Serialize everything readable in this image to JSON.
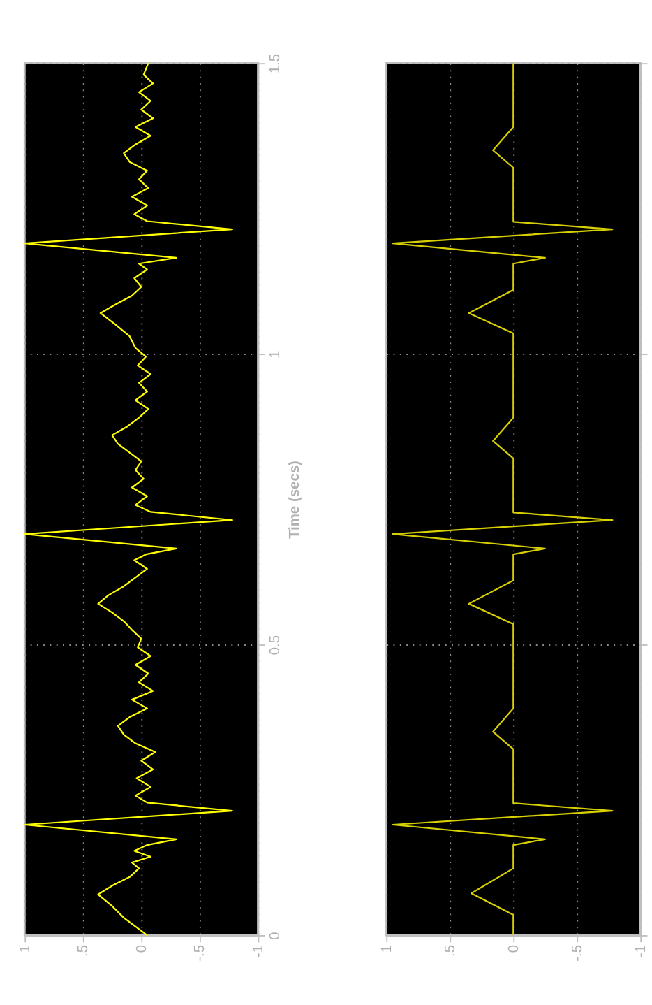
{
  "chart_data": [
    {
      "type": "line",
      "orientation": "horizontal",
      "ylabel": "Time (secs)",
      "ylim": [
        0,
        1.5
      ],
      "yticks": [
        0,
        0.5,
        1,
        1.5
      ],
      "xlim": [
        1,
        -1
      ],
      "xticks": [
        {
          "value": 1,
          "label": "1"
        },
        {
          "value": 0.5,
          "label": ".5"
        },
        0,
        {
          "value": -0.5,
          "label": "-.5"
        },
        {
          "value": -1,
          "label": "-1"
        }
      ],
      "grid": true,
      "legend": false,
      "marker": "none",
      "line_style": "solid",
      "x": [
        0.0,
        0.015,
        0.03,
        0.05,
        0.07,
        0.085,
        0.1,
        0.115,
        0.125,
        0.135,
        0.145,
        0.155,
        0.165,
        0.19,
        0.214,
        0.228,
        0.24,
        0.255,
        0.27,
        0.285,
        0.3,
        0.315,
        0.33,
        0.345,
        0.36,
        0.375,
        0.39,
        0.405,
        0.42,
        0.435,
        0.45,
        0.465,
        0.48,
        0.495,
        0.51,
        0.525,
        0.54,
        0.555,
        0.57,
        0.585,
        0.6,
        0.615,
        0.63,
        0.645,
        0.655,
        0.665,
        0.69,
        0.714,
        0.728,
        0.74,
        0.755,
        0.77,
        0.785,
        0.8,
        0.815,
        0.83,
        0.845,
        0.86,
        0.875,
        0.89,
        0.905,
        0.92,
        0.935,
        0.95,
        0.965,
        0.98,
        0.995,
        1.01,
        1.03,
        1.05,
        1.07,
        1.085,
        1.1,
        1.115,
        1.13,
        1.145,
        1.155,
        1.165,
        1.19,
        1.214,
        1.228,
        1.24,
        1.255,
        1.27,
        1.285,
        1.3,
        1.315,
        1.33,
        1.345,
        1.36,
        1.375,
        1.39,
        1.405,
        1.42,
        1.435,
        1.45,
        1.465,
        1.48,
        1.5
      ],
      "series": [
        {
          "color": "#ffff00",
          "values": [
            -0.05,
            0.05,
            0.15,
            0.25,
            0.37,
            0.25,
            0.1,
            0.02,
            0.08,
            -0.08,
            0.06,
            -0.05,
            -0.3,
            1.0,
            -0.78,
            -0.05,
            0.05,
            -0.08,
            0.04,
            -0.1,
            0.0,
            -0.12,
            0.05,
            0.15,
            0.2,
            0.1,
            -0.05,
            0.08,
            -0.1,
            0.02,
            -0.06,
            0.05,
            -0.08,
            0.03,
            0.0,
            0.08,
            0.15,
            0.25,
            0.37,
            0.28,
            0.15,
            0.05,
            -0.05,
            0.06,
            -0.04,
            -0.3,
            1.0,
            -0.78,
            -0.08,
            0.05,
            -0.05,
            0.08,
            -0.02,
            0.05,
            0.0,
            0.1,
            0.2,
            0.25,
            0.12,
            0.02,
            -0.06,
            0.05,
            -0.05,
            0.02,
            -0.08,
            0.03,
            -0.04,
            0.05,
            0.1,
            0.22,
            0.35,
            0.22,
            0.08,
            0.0,
            0.06,
            -0.05,
            0.02,
            -0.3,
            1.0,
            -0.78,
            -0.05,
            0.06,
            -0.05,
            0.08,
            -0.06,
            0.02,
            -0.05,
            0.1,
            0.15,
            0.05,
            -0.08,
            0.05,
            -0.1,
            0.0,
            -0.08,
            0.02,
            -0.1,
            -0.02,
            -0.06
          ]
        }
      ]
    },
    {
      "type": "line",
      "orientation": "horizontal",
      "ylim": [
        0,
        1.5
      ],
      "yticks": [
        0,
        0.5,
        1,
        1.5
      ],
      "xlim": [
        1,
        -1
      ],
      "xticks": [
        {
          "value": 1,
          "label": "1"
        },
        {
          "value": 0.5,
          "label": ".5"
        },
        0,
        {
          "value": -0.5,
          "label": "-.5"
        },
        {
          "value": -1,
          "label": "-1"
        }
      ],
      "grid": true,
      "legend": false,
      "marker": "none",
      "line_style": "solid",
      "tick_labels": "x",
      "x": [
        0,
        0.035,
        0.072,
        0.115,
        0.155,
        0.165,
        0.19,
        0.214,
        0.227,
        0.32,
        0.35,
        0.39,
        0.535,
        0.57,
        0.61,
        0.655,
        0.665,
        0.69,
        0.714,
        0.727,
        0.82,
        0.85,
        0.89,
        1.035,
        1.07,
        1.11,
        1.155,
        1.165,
        1.19,
        1.214,
        1.227,
        1.32,
        1.35,
        1.39,
        1.5
      ],
      "series": [
        {
          "color": "#d8d000",
          "values": [
            0,
            0,
            0.33,
            0,
            0,
            -0.25,
            0.95,
            -0.78,
            0,
            0,
            0.16,
            0,
            0,
            0.35,
            0,
            0,
            -0.25,
            0.95,
            -0.78,
            0,
            0,
            0.16,
            0,
            0,
            0.35,
            0,
            0,
            -0.25,
            0.95,
            -0.78,
            0,
            0,
            0.16,
            0,
            0
          ]
        }
      ]
    }
  ]
}
